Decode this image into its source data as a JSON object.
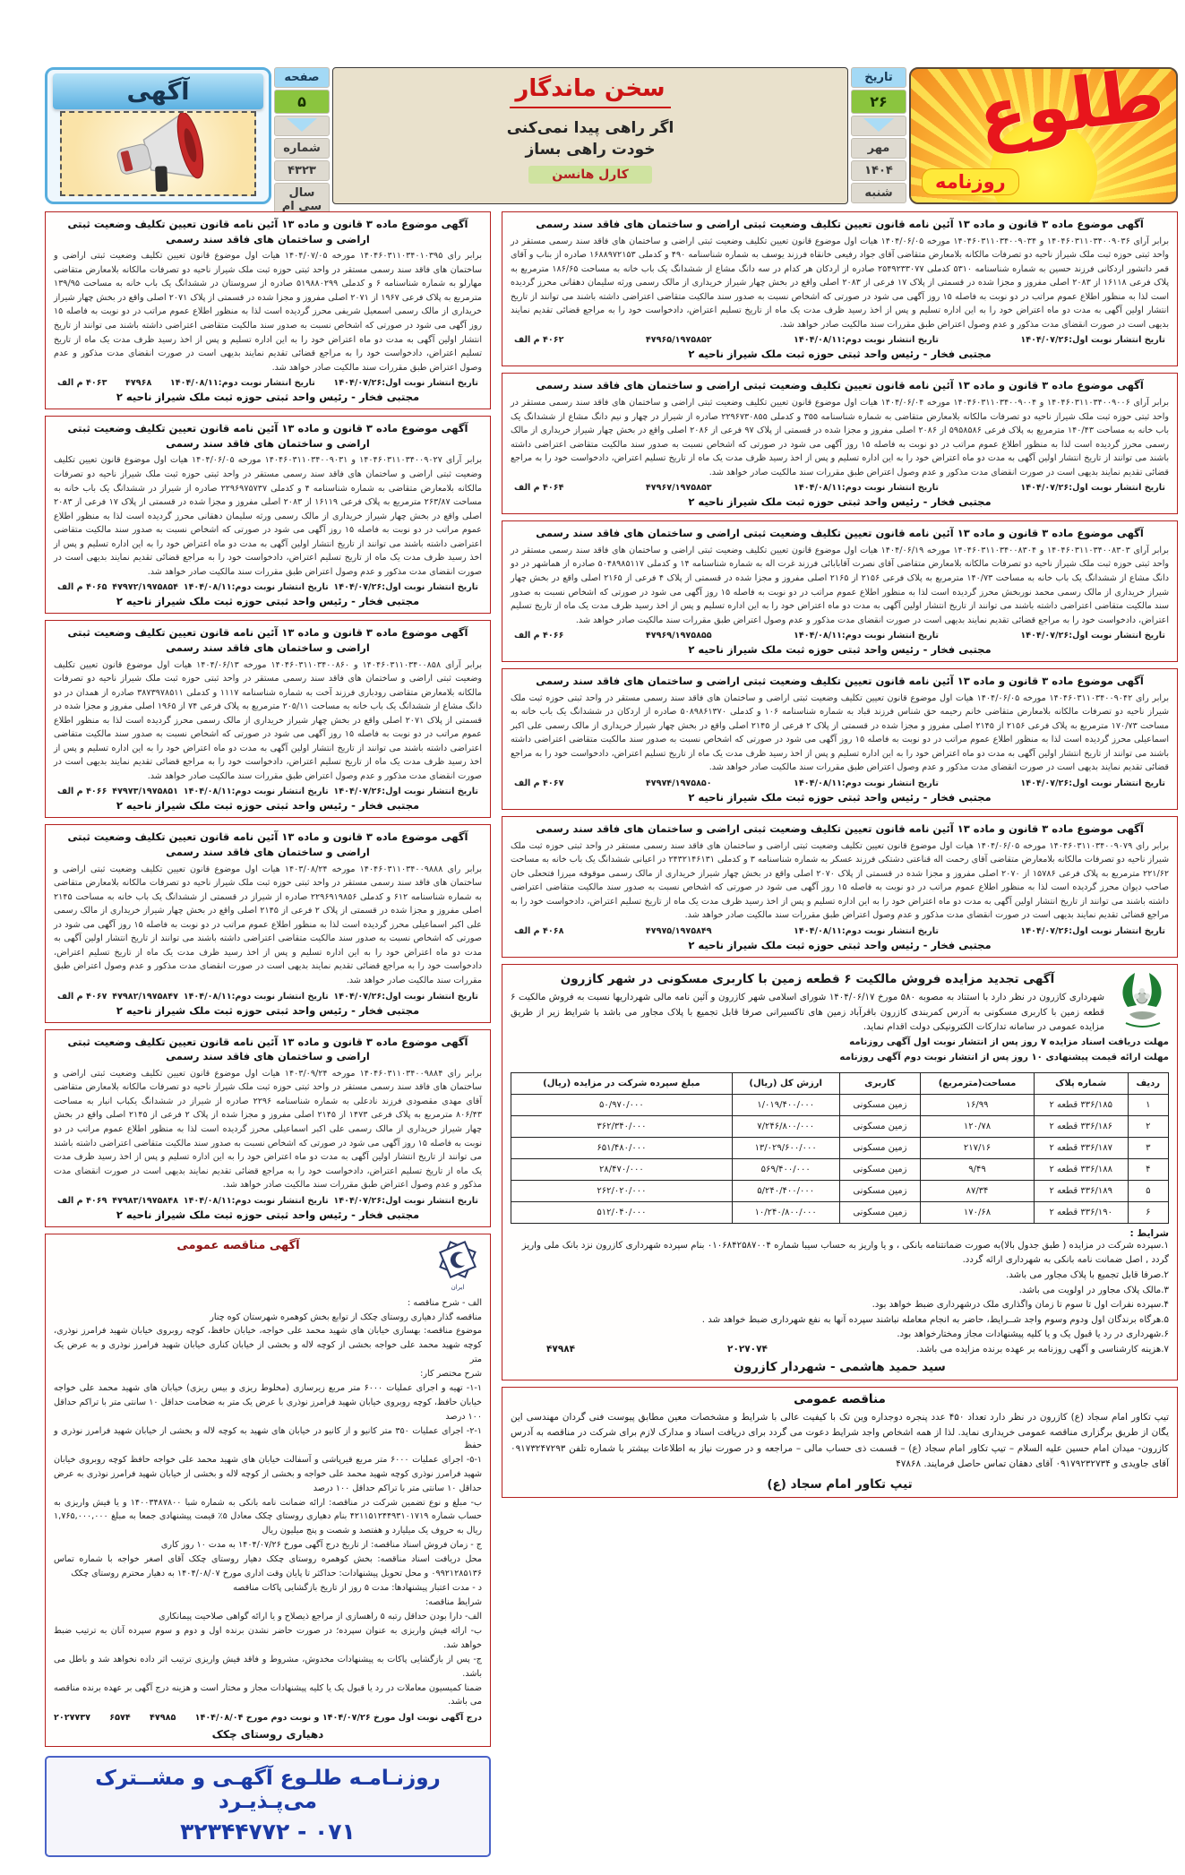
{
  "header": {
    "ad_banner": {
      "label": "آگهی"
    },
    "page_info": {
      "page_label": "صفحه",
      "page_number": "۵",
      "issue_label": "شماره",
      "issue_number": "۴۳۲۳",
      "year_label": "سال سی ام"
    },
    "quote": {
      "title": "سخن ماندگار",
      "line1": "اگر راهی پیدا نمی‌کنی",
      "line2": "خودت راهی بساز",
      "author": "کارل هانسن"
    },
    "date_info": {
      "date_label": "تاریخ",
      "day": "۲۶",
      "month": "مهر",
      "year": "۱۴۰۴",
      "weekday": "شنبه"
    },
    "logo": {
      "name": "طُلوع",
      "paper_label": "روزنامه"
    }
  },
  "notice_title": "آگهی موضوع ماده ۳ قانون و ماده ۱۳ آئین نامه قانون تعیین تکلیف وضعیت ثبتی اراضی و ساختمان های فاقد سند رسمی",
  "notice_signature": "مجتبی فخار - رئیس واحد ثبتی حوزه ثبت ملک شیراز ناحیه ۲",
  "pub_first": "تاریخ انتشار نوبت اول:۱۴۰۴/۰۷/۲۶",
  "pub_second": "تاریخ انتشار نوبت دوم:۱۴۰۴/۰۸/۱۱",
  "right_notices": [
    {
      "body": "برابر آرای ۱۴۰۴۶۰۳۱۱۰۳۴۰۰۹۰۳۶ و ۱۴۰۴۶۰۳۱۱۰۳۴۰۰۹۰۳۴ مورخه ۱۴۰۴/۰۶/۰۵ هیات اول موضوع قانون تعیین تکلیف وضعیت ثبتی اراضی و ساختمان های فاقد سند رسمی مستقر در واحد ثبتی حوزه ثبت ملک شیراز ناحیه دو تصرفات مالکانه بلامعارض متقاضی آقای جواد رفیعی خانقاه فرزند یوسف به شماره شناسنامه ۴۹۰ و کدملی ۱۶۸۸۹۷۲۱۵۳ صادره از بناب و آقای قمر داتشور اردکانی فرزند حسین به شماره شناسنامه ۵۳۱۰ کدملی ۲۵۴۹۲۳۳۰۷۷ صادره از اردکان هر کدام در سه دانگ مشاع از ششدانگ یک باب خانه به مساحت ۱۸۶/۶۵ مترمربع به پلاک فرعی ۱۶۱۱۸ از ۲۰۸۳ اصلی مفروز و مجزا شده در قسمتی از پلاک ۱۷ فرعی از ۲۰۸۳ اصلی واقع در بخش چهار شیراز خریداری از مالک رسمی ورثه سلیمان دهقانی محرز گردیده است لذا به منظور اطلاع عموم مراتب در دو نوبت به فاصله ۱۵ روز آگهی می شود در صورتی که اشخاص نسبت به صدور سند مالکیت متقاضی اعتراضی داشته باشند می توانند از تاریخ انتشار اولین آگهی به مدت دو ماه اعتراض خود را به این اداره تسلیم و پس از اخذ رسید ظرف مدت یک ماه از تاریخ تسلیم اعتراض، دادخواست خود را به مراجع قضائی تقدیم نمایند بدیهی است در صورت انقضای مدت مذکور و عدم وصول اعتراض طبق مقررات سند مالکیت صادر خواهد شد.",
      "serial": "۴۷۹۶۵/۱۹۷۵۸۵۲",
      "malf": "۴۰۶۲ م الف"
    },
    {
      "body": "برابر آرای ۱۴۰۴۶۰۳۱۱۰۳۴۰۰۹۰۰۶ و ۱۴۰۴۶۰۳۱۱۰۳۴۰۰۹۰۰۴ مورخه ۱۴۰۴/۰۶/۰۴ هیات اول موضوع قانون تعیین تکلیف وضعیت ثبتی اراضی و ساختمان های فاقد سند رسمی مستقر در واحد ثبتی حوزه ثبت ملک شیراز ناحیه دو تصرفات مالکانه بلامعارض متقاضی به شماره شناسنامه ۳۵۵ و کدملی ۲۲۹۶۷۳۰۸۵۵ صادره از شیراز در چهار و نیم دانگ مشاع از ششدانگ یک باب خانه به مساحت ۱۴۰/۴۳ مترمربع به پلاک فرعی ۵۹۵۸۵۸۶ از ۲۰۸۶ اصلی مفروز و مجزا شده در قسمتی از پلاک ۹۷ فرعی از ۲۰۸۶ اصلی واقع در بخش چهار شیراز خریداری از مالک رسمی محرز گردیده است لذا به منظور اطلاع عموم مراتب در دو نوبت به فاصله ۱۵ روز آگهی می شود در صورتی که اشخاص نسبت به صدور سند مالکیت متقاضی اعتراضی داشته باشند می توانند از تاریخ انتشار اولین آگهی به مدت دو ماه اعتراض خود را به این اداره تسلیم و پس از اخذ رسید ظرف مدت یک ماه از تاریخ تسلیم اعتراض، دادخواست خود را به مراجع قضائی تقدیم نمایند بدیهی است در صورت انقضای مدت مذکور و عدم وصول اعتراض طبق مقررات سند مالکیت صادر خواهد شد.",
      "serial": "۴۷۹۶۷/۱۹۷۵۸۵۳",
      "malf": "۴۰۶۴ م الف"
    },
    {
      "body": "برابر آرای ۱۴۰۴۶۰۳۱۱۰۳۴۰۰۸۳۰۳ و ۱۴۰۴۶۰۳۱۱۰۳۴۰۰۸۳۰۴ مورخه ۱۴۰۴/۰۶/۱۹ هیات اول موضوع قانون تعیین تکلیف وضعیت ثبتی اراضی و ساختمان های فاقد سند رسمی مستقر در واحد ثبتی حوزه ثبت ملک شیراز ناحیه دو تصرفات مالکانه بلامعارض متقاضی آقای نصرت آقابابائی فرزند غرت اله به شماره شناسنامه ۱۴ و کدملی ۵۰۴۸۹۸۵۱۱۷ صادره از هماشهر در دو دانگ مشاع از ششدانگ یک باب خانه به مساحت ۱۴۰/۷۳ مترمربع به پلاک فرعی ۲۱۵۶ از ۲۱۶۵ اصلی مفروز و مجزا شده در قسمتی از پلاک ۴ فرعی از ۲۱۶۵ اصلی واقع در بخش چهار شیراز خریداری از مالک رسمی محمد نوربخش محرز گردیده است لذا به منظور اطلاع عموم مراتب در دو نوبت به فاصله ۱۵ روز آگهی می شود در صورتی که اشخاص نسبت به صدور سند مالکیت متقاضی اعتراضی داشته باشند می توانند از تاریخ انتشار اولین آگهی به مدت دو ماه اعتراض خود را به این اداره تسلیم و پس از اخذ رسید ظرف مدت یک ماه از تاریخ تسلیم اعتراض، دادخواست خود را به مراجع قضائی تقدیم نمایند بدیهی است در صورت انقضای مدت مذکور و عدم وصول اعتراض طبق مقررات سند مالکیت صادر خواهد شد.",
      "serial": "۴۷۹۶۹/۱۹۷۵۸۵۵",
      "malf": "۴۰۶۶ م الف"
    },
    {
      "body": "برابر رای ۱۴۰۴۶۰۳۱۱۰۳۴۰۰۹۰۴۲ مورخه ۱۴۰۴/۰۶/۰۵ هیات اول موضوع قانون تعیین تکلیف وضعیت ثبتی اراضی و ساختمان های فاقد سند رسمی مستقر در واحد ثبتی حوزه ثبت ملک شیراز ناحیه دو تصرفات مالکانه بلامعارض متقاضی خانم رحیمه حق شناس فرزند قباد به شماره شناسنامه ۱۰۶ و کدملی ۵۰۸۹۸۶۱۳۷۰ صادره از اردکان در ششدانگ یک باب خانه به مساحت ۱۷۰/۷۳ مترمربع به پلاک فرعی ۲۱۵۶ از ۲۱۴۵ اصلی مفروز و مجزا شده در قسمتی از پلاک ۲ فرعی از ۲۱۴۵ اصلی واقع در بخش چهار شیراز خریداری از مالک رسمی علی اکبر اسماعیلی محرز گردیده است لذا به منظور اطلاع عموم مراتب در دو نوبت به فاصله ۱۵ روز آگهی می شود در صورتی که اشخاص نسبت به صدور سند مالکیت متقاضی اعتراضی داشته باشند می توانند از تاریخ انتشار اولین آگهی به مدت دو ماه اعتراض خود را به این اداره تسلیم و پس از اخذ رسید ظرف مدت یک ماه از تاریخ تسلیم اعتراض، دادخواست خود را به مراجع قضائی تقدیم نمایند بدیهی است در صورت انقضای مدت مذکور و عدم وصول اعتراض طبق مقررات سند مالکیت صادر خواهد شد.",
      "serial": "۴۷۹۷۴/۱۹۷۵۸۵۰",
      "malf": "۴۰۶۷ م الف"
    },
    {
      "body": "برابر رای ۱۴۰۴۶۰۳۱۱۰۳۴۰۰۹۰۷۹ مورخه ۱۴۰۴/۰۶/۰۵ هیات اول موضوع قانون تعیین تکلیف وضعیت ثبتی اراضی و ساختمان های فاقد سند رسمی مستقر در واحد ثبتی حوزه ثبت ملک شیراز ناحیه دو تصرفات مالکانه بلامعارض متقاضی آقای رحمت اله قناعتی دشتکی فرزند عسکر به شماره شناسنامه ۳ و کدملی ۲۴۳۲۱۴۶۱۳۱ در اعیانی ششدانگ یک باب خانه به مساحت ۲۲۱/۶۲ مترمربع به پلاک فرعی ۱۵۷۸۶ از ۲۰۷۰ اصلی مفروز و مجزا شده در قسمتی از پلاک ۲۰۷۰ اصلی واقع در بخش چهار شیراز خریداری از مالک رسمی موقوفه میرزا فتحعلی خان صاحب دیوان محرز گردیده است لذا به منظور اطلاع عموم مراتب در دو نوبت به فاصله ۱۵ روز آگهی می شود در صورتی که اشخاص نسبت به صدور سند مالکیت متقاضی اعتراضی داشته باشند می توانند از تاریخ انتشار اولین آگهی به مدت دو ماه اعتراض خود را به این اداره تسلیم و پس از اخذ رسید ظرف مدت یک ماه از تاریخ تسلیم اعتراض، دادخواست خود را به مراجع قضائی تقدیم نمایند بدیهی است در صورت انقضای مدت مذکور و عدم وصول اعتراض طبق مقررات سند مالکیت صادر خواهد شد.",
      "serial": "۴۷۹۷۵/۱۹۷۵۸۴۹",
      "malf": "۴۰۶۸ م الف"
    }
  ],
  "left_notices": [
    {
      "body": "برابر رای ۱۴۰۴۶۰۳۱۱۰۳۴۰۱۰۳۹۵ مورخه ۱۴۰۴/۰۷/۰۵ هیات اول موضوع قانون تعیین تکلیف وضعیت ثبتی اراضی و ساختمان های فاقد سند رسمی مستقر در واحد ثبتی حوزه ثبت ملک شیراز ناحیه دو تصرفات مالکانه بلامعارض متقاضی مهارلو به شماره شناسنامه ۶ و کدملی ۵۱۹۸۸۰۲۹۹ صادره از سروستان در ششدانگ یک باب خانه به مساحت ۱۳۹/۹۵ مترمربع به پلاک فرعی ۱۹۶۷ از ۲۰۷۱ اصلی مفروز و مجزا شده در قسمتی از پلاک ۲۰۷۱ اصلی واقع در بخش چهار شیراز خریداری از مالک رسمی اسمعیل شریفی محرز گردیده است لذا به منظور اطلاع عموم مراتب در دو نوبت به فاصله ۱۵ روز آگهی می شود در صورتی که اشخاص نسبت به صدور سند مالکیت متقاضی اعتراضی داشته باشند می توانند از تاریخ انتشار اولین آگهی به مدت دو ماه اعتراض خود را به این اداره تسلیم و پس از اخذ رسید ظرف مدت یک ماه از تاریخ تسلیم اعتراض، دادخواست خود را به مراجع قضائی تقدیم نمایند بدیهی است در صورت انقضای مدت مذکور و عدم وصول اعتراض طبق مقررات سند مالکیت صادر خواهد شد.",
      "serial": "۴۷۹۶۸",
      "malf": "۴۰۶۳ م الف"
    },
    {
      "body": "برابر آرای ۱۴۰۴۶۰۳۱۱۰۳۴۰۰۹۰۲۷ و ۱۴۰۴۶۰۳۱۱۰۳۴۰۰۹۰۳۱ مورخه ۱۴۰۴/۰۶/۰۵ هیات اول موضوع قانون تعیین تکلیف وضعیت ثبتی اراضی و ساختمان های فاقد سند رسمی مستقر در واحد ثبتی حوزه ثبت ملک شیراز ناحیه دو تصرفات مالکانه بلامعارض متقاضی به شماره شناسنامه ۴ و کدملی ۲۲۹۶۹۷۵۷۳۷ صادره از شیراز در ششدانگ یک باب خانه به مساحت ۲۶۳/۸۷ مترمربع به پلاک فرعی ۱۶۱۱۹ از ۲۰۸۳ اصلی مفروز و مجزا شده در قسمتی از پلاک ۱۷ فرعی از ۲۰۸۳ اصلی واقع در بخش چهار شیراز خریداری از مالک رسمی ورثه سلیمان دهقانی محرز گردیده است لذا به منظور اطلاع عموم مراتب در دو نوبت به فاصله ۱۵ روز آگهی می شود در صورتی که اشخاص نسبت به صدور سند مالکیت متقاضی اعتراضی داشته باشند می توانند از تاریخ انتشار اولین آگهی به مدت دو ماه اعتراض خود را به این اداره تسلیم و پس از اخذ رسید ظرف مدت یک ماه از تاریخ تسلیم اعتراض، دادخواست خود را به مراجع قضائی تقدیم نمایند بدیهی است در صورت انقضای مدت مذکور و عدم وصول اعتراض طبق مقررات سند مالکیت صادر خواهد شد.",
      "serial": "۴۷۹۷۲/۱۹۷۵۸۵۴",
      "malf": "۴۰۶۵ م الف"
    },
    {
      "body": "برابر آرای ۱۴۰۴۶۰۳۱۱۰۳۴۰۰۸۵۸ و ۱۴۰۴۶۰۳۱۱۰۳۴۰۰۸۶۰ مورخه ۱۴۰۴/۰۶/۱۳ هیات اول موضوع قانون تعیین تکلیف وضعیت ثبتی اراضی و ساختمان های فاقد سند رسمی مستقر در واحد ثبتی حوزه ثبت ملک شیراز ناحیه دو تصرفات مالکانه بلامعارض متقاضی رودباری فرزند آخت به شماره شناسنامه ۱۱۱۷ و کدملی ۳۸۷۳۹۷۸۵۱۱ صادره از همدان در دو دانگ مشاع از ششدانگ یک باب خانه به مساحت ۲۰۵/۱۱ مترمربع به پلاک فرعی ۷۴ از ۱۹۶۵ اصلی مفروز و مجزا شده در قسمتی از پلاک ۲۰۷۱ اصلی واقع در بخش چهار شیراز خریداری از مالک رسمی محرز گردیده است لذا به منظور اطلاع عموم مراتب در دو نوبت به فاصله ۱۵ روز آگهی می شود در صورتی که اشخاص نسبت به صدور سند مالکیت متقاضی اعتراضی داشته باشند می توانند از تاریخ انتشار اولین آگهی به مدت دو ماه اعتراض خود را به این اداره تسلیم و پس از اخذ رسید ظرف مدت یک ماه از تاریخ تسلیم اعتراض، دادخواست خود را به مراجع قضائی تقدیم نمایند بدیهی است در صورت انقضای مدت مذکور و عدم وصول اعتراض طبق مقررات سند مالکیت صادر خواهد شد.",
      "serial": "۴۷۹۷۳/۱۹۷۵۸۵۱",
      "malf": "۴۰۶۶ م الف"
    },
    {
      "body": "برابر رای ۱۴۰۴۶۰۳۱۱۰۳۴۰۰۹۸۸۸ مورخه ۱۴۰۳/۰۸/۲۴ هیات اول موضوع قانون تعیین تکلیف وضعیت ثبتی اراضی و ساختمان های فاقد سند رسمی مستقر در واحد ثبتی حوزه ثبت ملک شیراز ناحیه دو تصرفات مالکانه بلامعارض متقاضی به شماره شناسنامه ۶۱۲ و کدملی ۲۲۹۶۹۱۹۸۵۶ صادره از شیراز در قسمتی از ششدانگ یک باب خانه به مساحت ۲۱۴۵ اصلی مفروز و مجزا شده در قسمتی از پلاک ۲ فرعی از ۲۱۴۵ اصلی واقع در بخش چهار شیراز خریداری از مالک رسمی علی اکبر اسماعیلی محرز گردیده است لذا به منظور اطلاع عموم مراتب در دو نوبت به فاصله ۱۵ روز آگهی می شود در صورتی که اشخاص نسبت به صدور سند مالکیت متقاضی اعتراضی داشته باشند می توانند از تاریخ انتشار اولین آگهی به مدت دو ماه اعتراض خود را به این اداره تسلیم و پس از اخذ رسید ظرف مدت یک ماه از تاریخ تسلیم اعتراض، دادخواست خود را به مراجع قضائی تقدیم نمایند بدیهی است در صورت انقضای مدت مذکور و عدم وصول اعتراض طبق مقررات سند مالکیت صادر خواهد شد.",
      "serial": "۴۷۹۸۲/۱۹۷۵۸۴۷",
      "malf": "۴۰۶۷ م الف"
    },
    {
      "body": "برابر رای ۱۴۰۴۶۰۳۱۱۰۳۴۰۰۹۸۸۴ مورخه ۱۴۰۳/۰۹/۲۴ هیات اول موضوع قانون تعیین تکلیف وضعیت ثبتی اراضی و ساختمان های فاقد سند رسمی مستقر در واحد ثبتی حوزه ثبت ملک شیراز ناحیه دو تصرفات مالکانه بلامعارض متقاضی آقای مهدی مقصودی فرزند نادعلی به شماره شناسنامه ۲۲۹۶ صادره از شیراز در ششدانگ یکباب انبار به مساحت ۸۰۶/۴۳ مترمربع به پلاک فرعی ۱۴۷۳ از ۲۱۴۵ اصلی مفروز و مجزا شده از پلاک ۲ فرعی از ۲۱۴۵ اصلی واقع در بخش چهار شیراز خریداری از مالک رسمی علی اکبر اسماعیلی محرز گردیده است لذا به منظور اطلاع عموم مراتب در دو نوبت به فاصله ۱۵ روز آگهی می شود در صورتی که اشخاص نسبت به صدور سند مالکیت متقاضی اعتراضی داشته باشند می توانند از تاریخ انتشار اولین آگهی به مدت دو ماه اعتراض خود را به این اداره تسلیم و پس از اخذ رسید ظرف مدت یک ماه از تاریخ تسلیم اعتراض، دادخواست خود را به مراجع قضائی تقدیم نمایند بدیهی است در صورت انقضای مدت مذکور و عدم وصول اعتراض طبق مقررات سند مالکیت صادر خواهد شد.",
      "serial": "۴۷۹۸۳/۱۹۷۵۸۴۸",
      "malf": "۴۰۶۹ م الف"
    }
  ],
  "auction": {
    "title": "آگهی تجدید مزایده فروش مالکیت ۶ قطعه زمین  با کاربری مسکونی در شهر کازرون",
    "intro": "شهرداری کازرون در نظر دارد با استناد به مصوبه ۵۸۰ مورخ ۱۴۰۴/۰۶/۱۷ شورای اسلامی شهر کازرون و آئین نامه مالی شهرداریها نسبت به فروش مالکیت ۶ قطعه زمین با کاربری مسکونی به آدرس کمربندی کازرون باقرآباد زمین های تاکسیرانی صرفا قابل تجمیع با پلاک مجاور می باشد با شرایط زیر از طریق مزایده عمومی در سامانه تدارکات الکترونیکی دولت اقدام نماید.",
    "deadline1": "مهلت دریافت اسناد مزایده ۷ روز پس از انتشار نوبت اول آگهی روزنامه",
    "deadline2": "مهلت ارائه قیمت پیشنهادی  ۱۰ روز پس از انتشار نوبت دوم آگهی روزنامه",
    "table": {
      "headers": [
        "ردیف",
        "شماره پلاک",
        "مساحت(مترمربع)",
        "کاربری",
        "ارزش کل (ریال)",
        "مبلغ سپرده شرکت در مزایده (ریال)"
      ],
      "rows": [
        [
          "۱",
          "۳۳۶/۱۸۵ قطعه ۲",
          "۱۶/۹۹",
          "زمین مسکونی",
          "۱/۰۱۹/۴۰۰/۰۰۰",
          "۵۰/۹۷۰/۰۰۰"
        ],
        [
          "۲",
          "۳۳۶/۱۸۶ قطعه ۲",
          "۱۲۰/۷۸",
          "زمین مسکونی",
          "۷/۲۴۶/۸۰۰/۰۰۰",
          "۳۶۲/۳۴۰/۰۰۰"
        ],
        [
          "۳",
          "۳۳۶/۱۸۷ قطعه ۲",
          "۲۱۷/۱۶",
          "زمین مسکونی",
          "۱۳/۰۲۹/۶۰۰/۰۰۰",
          "۶۵۱/۴۸۰/۰۰۰"
        ],
        [
          "۴",
          "۳۳۶/۱۸۸ قطعه ۲",
          "۹/۴۹",
          "زمین مسکونی",
          "۵۶۹/۴۰۰/۰۰۰",
          "۲۸/۴۷۰/۰۰۰"
        ],
        [
          "۵",
          "۳۳۶/۱۸۹ قطعه ۲",
          "۸۷/۳۴",
          "زمین مسکونی",
          "۵/۲۴۰/۴۰۰/۰۰۰",
          "۲۶۲/۰۲۰/۰۰۰"
        ],
        [
          "۶",
          "۳۳۶/۱۹۰ قطعه ۲",
          "۱۷۰/۶۸",
          "زمین مسکونی",
          "۱۰/۲۴۰/۸۰۰/۰۰۰",
          "۵۱۲/۰۴۰/۰۰۰"
        ]
      ]
    },
    "conditions_label": "شرایط :",
    "conditions": [
      "۱.سپرده شرکت در مزایده ( طبق جدول بالا)به صورت ضمانتنامه بانکی ، و یا واریز به حساب سیبا شماره ۰۱۰۶۸۴۲۵۸۷۰۰۴ بنام سپرده شهرداری کازرون نزد بانک ملی واریز گردد , اصل ضمانت نامه بانکی به شهرداری ارائه گردد.",
      "۲.صرفا قابل تجمیع با پلاک مجاور می باشد.",
      "۳.مالک پلاک مجاور در اولویت می باشد.",
      "۴.سپرده نفرات اول تا سوم تا زمان واگذاری ملک درشهرداری ضبط خواهد بود.",
      "۵.هرگاه برندگان اول ودوم وسوم واجد شــرایط، حاضر به انجام معامله نباشند سپرده آنها به  نفع شهرداری ضبط خواهد شد .",
      "۶.شهرداری در رد یا قبول یک و یا کلیه پیشنهادات مجاز ومختارخواهد بود.",
      "۷.هزینه کارشناسی و آگهی روزنامه بر عهده برنده مزایده می باشد."
    ],
    "code_setad": "۲۰۲۷۰۷۴",
    "code_serial": "۴۷۹۸۴",
    "signature": "سید حمید هاشمی - شهردار کازرون"
  },
  "takavor_tender": {
    "title": "مناقصه عمومی",
    "body": "تیپ تکاور امام سجاد (ع) کازرون در نظر دارد تعداد ۴۵۰ عدد پنجره دوجداره وین تک با کیفیت عالی با شرایط و مشخصات معین مطابق پیوست فنی گردان مهندسی این یگان از طریق برگزاری مناقصه عمومی خریداری نماید. لذا از همه اشخاص واجد شرایط دعوت می گردد برای دریافت اسناد و مدارک لازم برای شرکت در مناقصه به آدرس کازرون- میدان امام حسین علیه السلام – تیپ تکاور امام سجاد (ع) – قسمت ذی حساب مالی – مراجعه و در صورت نیاز به اطلاعات بیشتر با شماره تلفن ۰۹۱۷۳۲۴۷۲۹۳ آقای جاویدی و ۰۹۱۷۹۲۳۲۷۳۴ آقای دهقان تماس حاصل فرمایند.   ۴۷۸۶۸",
    "signature": "تیپ تکاور امام سجاد (ع)"
  },
  "chakak_tender": {
    "title": "آگهی مناقصه عمومی",
    "lines": [
      "الف - شرح مناقصه :",
      "مناقصه گذار دهیاری روستای چکک از توابع بخش کوهمره شهرستان کوه چنار",
      "موضوع مناقصه: بهسازی خیابان های شهید محمد علی خواجه، خیابان حافظ، کوچه روبروی خیابان شهید فرامرز نوذری، کوچه شهید محمد علی خواجه بخشی از کوچه لاله و بخشی از خیابان کناری خیابان شهید فرامرز نوذری و به عرض یک متر",
      "شرح مختصر کار:",
      "۱-۱- تهیه و اجرای عملیات ۶۰۰۰ متر مربع زیرسازی (مخلوط ریزی و بیس ریزی) خیابان های شهید محمد علی خواجه خیابان حافظ، کوچه روبروی خیابان شهید فرامرز نوذری با عرض یک متر به ضخامت حداقل ۱۰ سانتی متر با تراکم حداقل ۱۰۰ درصد",
      "۲-۱- اجرای عملیات ۳۵۰ متر کانیو و از کانیو در خیابان های شهید به کوچه لاله و بخشی از خیابان شهید فرامرز نوذری و حفظ",
      "۵-۱- اجرای عملیات ۶۰۰۰ متر مربع قیرپاشی و آسفالت خیابان های شهید محمد علی خواجه حافظ کوچه روبروی خیابان شهید فرامرز نوذری کوچه شهید محمد علی خواجه و بخشی از کوچه لاله و بخشی از خیابان شهید فرامرز نوذری به عرض حداقل ۱۰ سانتی متر با تراکم حداقل ۱۰۰ درصد",
      "ب- مبلغ و نوع تضمین شرکت در مناقصه: ارائه ضمانت نامه بانکی به شماره شبا ۱۴۰۰۳۴۸۷۸۰۰ و یا فیش واریزی به حساب شماره ۴۲۱۱۵۱۲۴۴۹۳۱۰۱۷۱۹ بنام دهیاری روستای چکک معادل ۵٪ قیمت پیشنهادی جمعا به مبلغ ۱,۷۶۵,۰۰۰,۰۰۰ ریال به حروف یک میلیارد و هفتصد و شصت و پنج میلیون ریال",
      "ج - زمان فروش اسناد مناقصه: از تاریخ درج آگهی مورخ ۱۴۰۴/۰۷/۲۶ به مدت ۱۰ روز کاری",
      "محل دریافت اسناد مناقصه: بخش کوهمره روستای چکک دهیار روستای چکک آقای اصغر خواجه با شماره تماس ۰۹۹۲۱۲۸۵۱۳۶ و محل تحویل پیشنهادات: حداکثر تا پایان وقت اداری مورخ ۱۴۰۴/۰۸/۰۷ به دهیار محترم روستای چکک",
      "د - مدت اعتبار پیشنهادها: مدت ۵ روز از تاریخ بازگشایی پاکات مناقصه",
      "شرایط مناقصه:",
      "الف- دارا بودن حداقل رتبه ۵ راهسازی از مراجع ذیصلاح و یا ارائه گواهی صلاحیت پیمانکاری",
      "ب- ارائه فیش واریزی به عنوان سپرده؛ در صورت حاضر نشدن برنده اول و دوم و سوم سپرده آنان به ترتیب ضبط خواهد شد.",
      "ج- پس از بازگشایی پاکات به پیشنهادات مخدوش، مشروط و فاقد فیش واریزی ترتیب اثر داده نخواهد شد و باطل می باشد.",
      "ضمنا کمیسیون معاملات در رد یا قبول یک یا کلیه پیشنهادات مجاز و مختار است و هزینه درج آگهی بر عهده برنده مناقصه می باشد."
    ],
    "footer_line": "درج آگهی نوبت اول مورخ ۱۴۰۴/۰۷/۲۶ و نوبت دوم مورخ ۱۴۰۴/۰۸/۰۴",
    "code1": "۴۷۹۸۵",
    "code2": "۶۵۷۴",
    "code3": "۲۰۲۷۷۳۷",
    "signature": "دهیاری روستای چکک"
  },
  "contact_box": {
    "line1": "روزنـامـه طلـوع آگهـی و مشــترک می‌پـذیـرد",
    "line2": "۳۲۳۴۴۷۷۲ - ۰۷۱"
  },
  "colors": {
    "accent_red": "#b5201e",
    "banner_blue": "#5cb1e2",
    "highlight_green": "#8bc53f",
    "logo_red": "#e8151c"
  }
}
